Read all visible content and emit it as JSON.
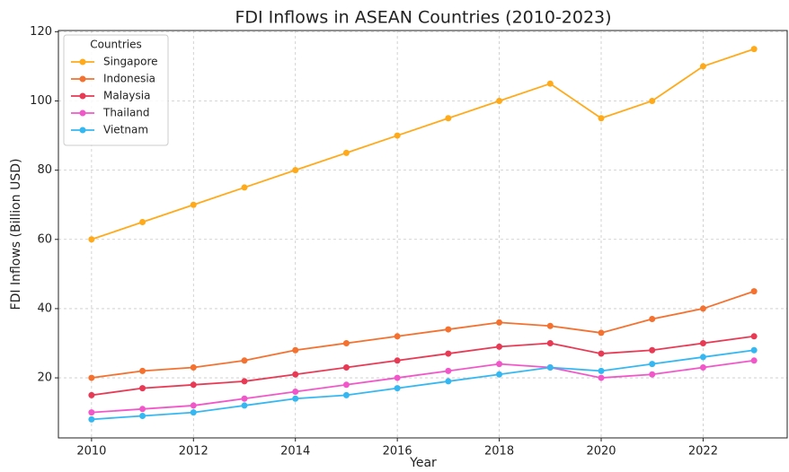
{
  "chart_data": {
    "type": "line",
    "title": "FDI Inflows in ASEAN Countries (2010-2023)",
    "x_label": "Year",
    "y_label": "FDI Inflows (Billion USD)",
    "legend_title": "Countries",
    "legend_position": "upper left",
    "grid": true,
    "x": [
      2010,
      2011,
      2012,
      2013,
      2014,
      2015,
      2016,
      2017,
      2018,
      2019,
      2020,
      2021,
      2022,
      2023
    ],
    "xlim": [
      2009.35,
      2023.65
    ],
    "xticks": [
      2010,
      2012,
      2014,
      2016,
      2018,
      2020,
      2022
    ],
    "ylim": [
      2.65,
      120.35
    ],
    "yticks": [
      20,
      40,
      60,
      80,
      100,
      120
    ],
    "series": [
      {
        "name": "Singapore",
        "color": "#ffaa1a",
        "values": [
          60,
          65,
          70,
          75,
          80,
          85,
          90,
          95,
          100,
          105,
          95,
          100,
          110,
          115
        ]
      },
      {
        "name": "Indonesia",
        "color": "#f4712f",
        "values": [
          20,
          22,
          23,
          25,
          28,
          30,
          32,
          34,
          36,
          35,
          33,
          37,
          40,
          45
        ]
      },
      {
        "name": "Malaysia",
        "color": "#e83a55",
        "values": [
          15,
          17,
          18,
          19,
          21,
          23,
          25,
          27,
          29,
          30,
          27,
          28,
          30,
          32
        ]
      },
      {
        "name": "Thailand",
        "color": "#f257c9",
        "values": [
          10,
          11,
          12,
          14,
          16,
          18,
          20,
          22,
          24,
          23,
          20,
          21,
          23,
          25
        ]
      },
      {
        "name": "Vietnam",
        "color": "#35b8f2",
        "values": [
          8,
          9,
          10,
          12,
          14,
          15,
          17,
          19,
          21,
          23,
          22,
          24,
          26,
          28
        ]
      }
    ]
  }
}
